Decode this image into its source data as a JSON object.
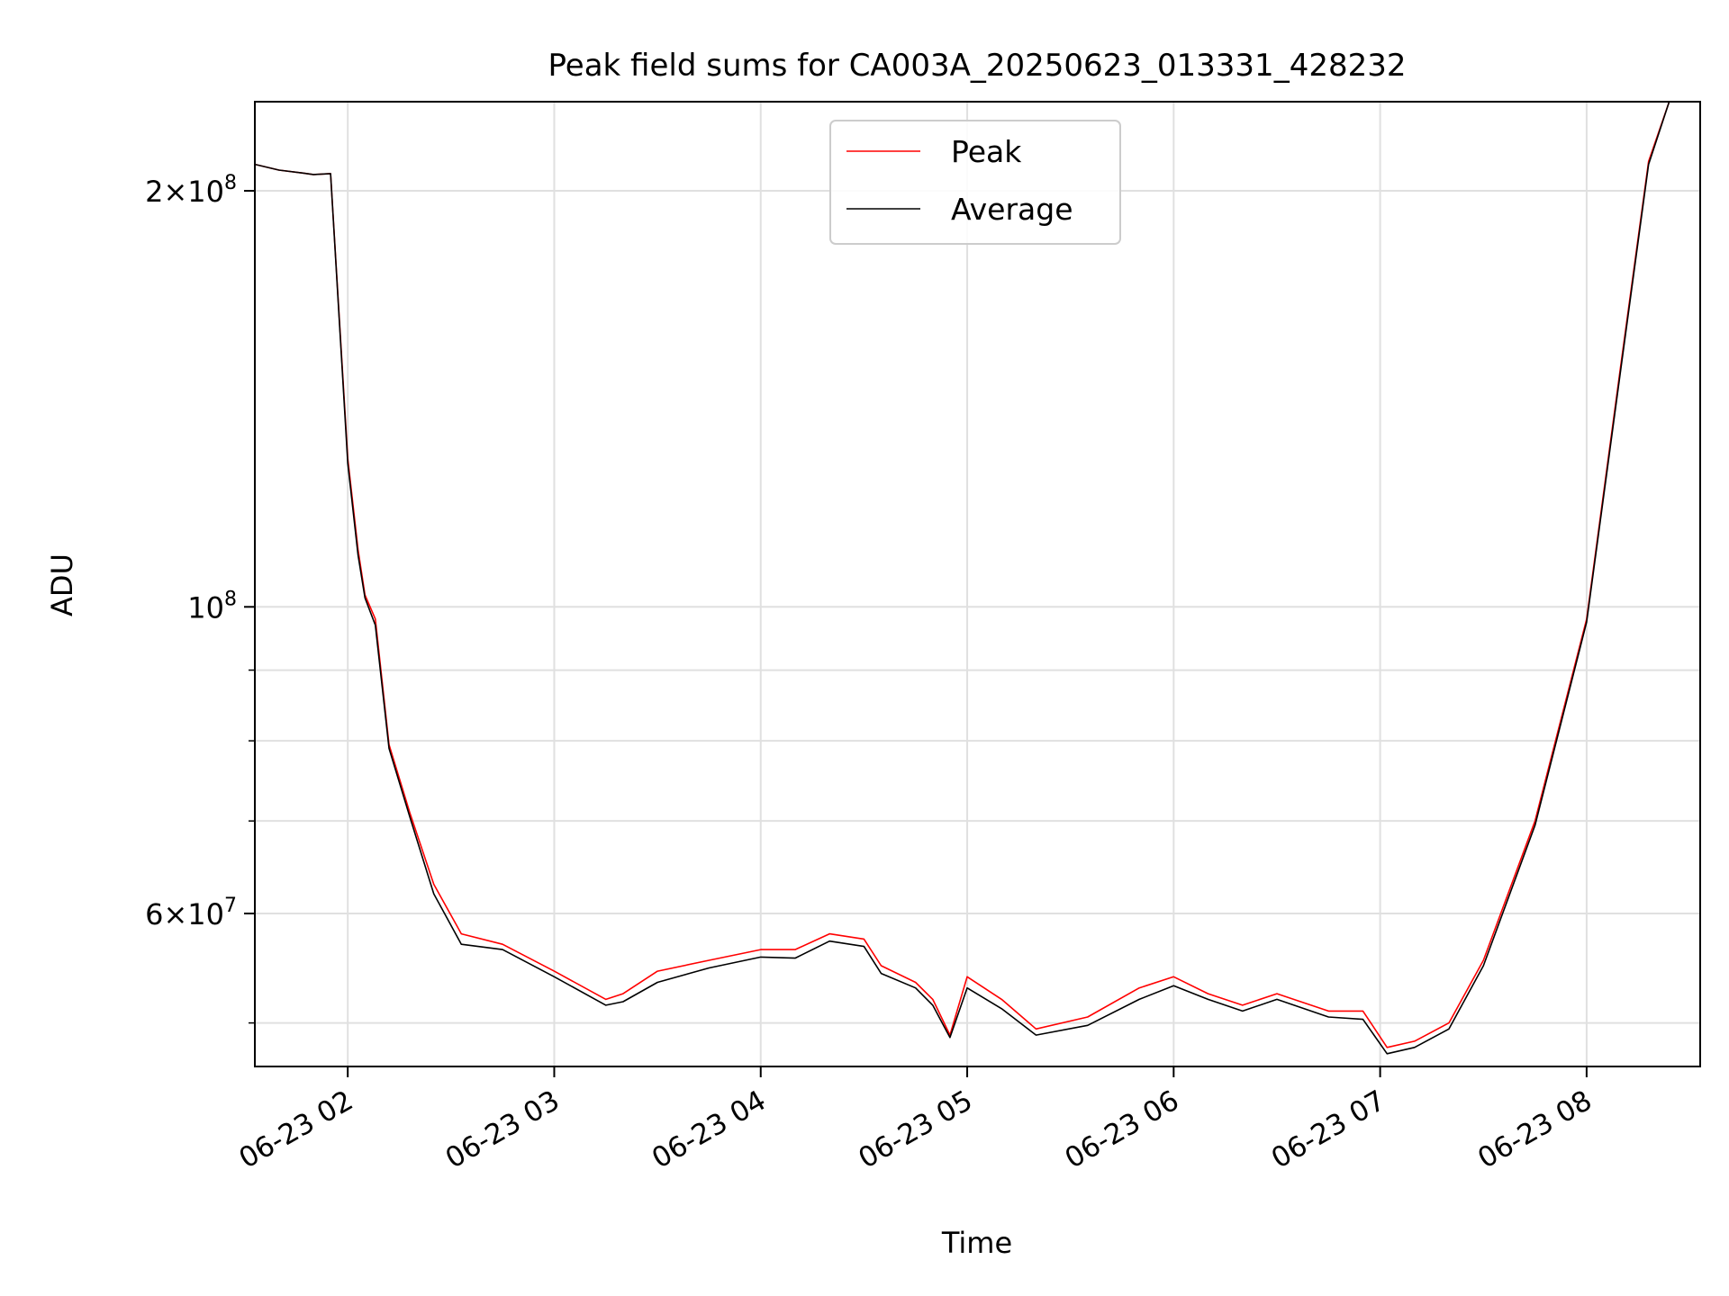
{
  "chart_data": {
    "type": "line",
    "title": "Peak field sums for CA003A_20250623_013331_428232",
    "xlabel": "Time",
    "ylabel": "ADU",
    "yscale": "log",
    "grid": true,
    "legend_position": "top-center",
    "xlim": [
      "2025-06-23 01:33",
      "2025-06-23 08:33"
    ],
    "ylim": [
      46500000,
      232000000
    ],
    "x_ticks": [
      {
        "t": "2025-06-23 02:00",
        "label": "06-23 02"
      },
      {
        "t": "2025-06-23 03:00",
        "label": "06-23 03"
      },
      {
        "t": "2025-06-23 04:00",
        "label": "06-23 04"
      },
      {
        "t": "2025-06-23 05:00",
        "label": "06-23 05"
      },
      {
        "t": "2025-06-23 06:00",
        "label": "06-23 06"
      },
      {
        "t": "2025-06-23 07:00",
        "label": "06-23 07"
      },
      {
        "t": "2025-06-23 08:00",
        "label": "06-23 08"
      }
    ],
    "y_major_ticks": [
      {
        "value": 200000000,
        "base": "2",
        "exp": "8",
        "times": true
      },
      {
        "value": 100000000,
        "base": "10",
        "exp": "8",
        "times": false
      },
      {
        "value": 60000000,
        "base": "6",
        "exp": "7",
        "times": true
      }
    ],
    "y_minor_grid": [
      50000000,
      70000000,
      80000000,
      90000000
    ],
    "series": [
      {
        "name": "Peak",
        "color": "#ff0000",
        "points": [
          [
            "2025-06-23 01:33",
            209000000
          ],
          [
            "2025-06-23 01:40",
            207000000
          ],
          [
            "2025-06-23 01:47",
            206000000
          ],
          [
            "2025-06-23 01:50",
            205500000
          ],
          [
            "2025-06-23 01:55",
            205800000
          ],
          [
            "2025-06-23 02:00",
            128000000
          ],
          [
            "2025-06-23 02:03",
            110000000
          ],
          [
            "2025-06-23 02:05",
            102000000
          ],
          [
            "2025-06-23 02:08",
            98000000
          ],
          [
            "2025-06-23 02:12",
            79500000
          ],
          [
            "2025-06-23 02:18",
            71000000
          ],
          [
            "2025-06-23 02:25",
            63000000
          ],
          [
            "2025-06-23 02:33",
            58000000
          ],
          [
            "2025-06-23 02:45",
            57000000
          ],
          [
            "2025-06-23 03:00",
            54500000
          ],
          [
            "2025-06-23 03:15",
            52000000
          ],
          [
            "2025-06-23 03:20",
            52500000
          ],
          [
            "2025-06-23 03:30",
            54500000
          ],
          [
            "2025-06-23 03:45",
            55500000
          ],
          [
            "2025-06-23 04:00",
            56500000
          ],
          [
            "2025-06-23 04:10",
            56500000
          ],
          [
            "2025-06-23 04:20",
            58000000
          ],
          [
            "2025-06-23 04:30",
            57500000
          ],
          [
            "2025-06-23 04:35",
            55000000
          ],
          [
            "2025-06-23 04:45",
            53500000
          ],
          [
            "2025-06-23 04:50",
            52000000
          ],
          [
            "2025-06-23 04:55",
            49000000
          ],
          [
            "2025-06-23 05:00",
            54000000
          ],
          [
            "2025-06-23 05:10",
            52000000
          ],
          [
            "2025-06-23 05:20",
            49500000
          ],
          [
            "2025-06-23 05:35",
            50500000
          ],
          [
            "2025-06-23 05:50",
            53000000
          ],
          [
            "2025-06-23 06:00",
            54000000
          ],
          [
            "2025-06-23 06:10",
            52500000
          ],
          [
            "2025-06-23 06:20",
            51500000
          ],
          [
            "2025-06-23 06:30",
            52500000
          ],
          [
            "2025-06-23 06:45",
            51000000
          ],
          [
            "2025-06-23 06:55",
            51000000
          ],
          [
            "2025-06-23 07:02",
            48000000
          ],
          [
            "2025-06-23 07:10",
            48500000
          ],
          [
            "2025-06-23 07:20",
            50000000
          ],
          [
            "2025-06-23 07:30",
            55500000
          ],
          [
            "2025-06-23 07:45",
            70000000
          ],
          [
            "2025-06-23 08:00",
            98000000
          ],
          [
            "2025-06-23 08:10",
            150000000
          ],
          [
            "2025-06-23 08:18",
            210000000
          ],
          [
            "2025-06-23 08:24",
            232000000
          ]
        ]
      },
      {
        "name": "Average",
        "color": "#000000",
        "points": [
          [
            "2025-06-23 01:33",
            209000000
          ],
          [
            "2025-06-23 01:40",
            207000000
          ],
          [
            "2025-06-23 01:47",
            206000000
          ],
          [
            "2025-06-23 01:50",
            205500000
          ],
          [
            "2025-06-23 01:55",
            205800000
          ],
          [
            "2025-06-23 02:00",
            127000000
          ],
          [
            "2025-06-23 02:03",
            109000000
          ],
          [
            "2025-06-23 02:05",
            101500000
          ],
          [
            "2025-06-23 02:08",
            97000000
          ],
          [
            "2025-06-23 02:12",
            79000000
          ],
          [
            "2025-06-23 02:18",
            70500000
          ],
          [
            "2025-06-23 02:25",
            62000000
          ],
          [
            "2025-06-23 02:33",
            57000000
          ],
          [
            "2025-06-23 02:45",
            56500000
          ],
          [
            "2025-06-23 03:00",
            54000000
          ],
          [
            "2025-06-23 03:15",
            51500000
          ],
          [
            "2025-06-23 03:20",
            51800000
          ],
          [
            "2025-06-23 03:30",
            53500000
          ],
          [
            "2025-06-23 03:45",
            54800000
          ],
          [
            "2025-06-23 04:00",
            55800000
          ],
          [
            "2025-06-23 04:10",
            55700000
          ],
          [
            "2025-06-23 04:20",
            57300000
          ],
          [
            "2025-06-23 04:30",
            56800000
          ],
          [
            "2025-06-23 04:35",
            54300000
          ],
          [
            "2025-06-23 04:45",
            53000000
          ],
          [
            "2025-06-23 04:50",
            51500000
          ],
          [
            "2025-06-23 04:55",
            48800000
          ],
          [
            "2025-06-23 05:00",
            53000000
          ],
          [
            "2025-06-23 05:10",
            51200000
          ],
          [
            "2025-06-23 05:20",
            49000000
          ],
          [
            "2025-06-23 05:35",
            49800000
          ],
          [
            "2025-06-23 05:50",
            52000000
          ],
          [
            "2025-06-23 06:00",
            53200000
          ],
          [
            "2025-06-23 06:10",
            52000000
          ],
          [
            "2025-06-23 06:20",
            51000000
          ],
          [
            "2025-06-23 06:30",
            52000000
          ],
          [
            "2025-06-23 06:45",
            50500000
          ],
          [
            "2025-06-23 06:55",
            50300000
          ],
          [
            "2025-06-23 07:02",
            47500000
          ],
          [
            "2025-06-23 07:10",
            48000000
          ],
          [
            "2025-06-23 07:20",
            49500000
          ],
          [
            "2025-06-23 07:30",
            55000000
          ],
          [
            "2025-06-23 07:45",
            69500000
          ],
          [
            "2025-06-23 08:00",
            97500000
          ],
          [
            "2025-06-23 08:10",
            149000000
          ],
          [
            "2025-06-23 08:18",
            209000000
          ],
          [
            "2025-06-23 08:24",
            232000000
          ]
        ]
      }
    ]
  }
}
